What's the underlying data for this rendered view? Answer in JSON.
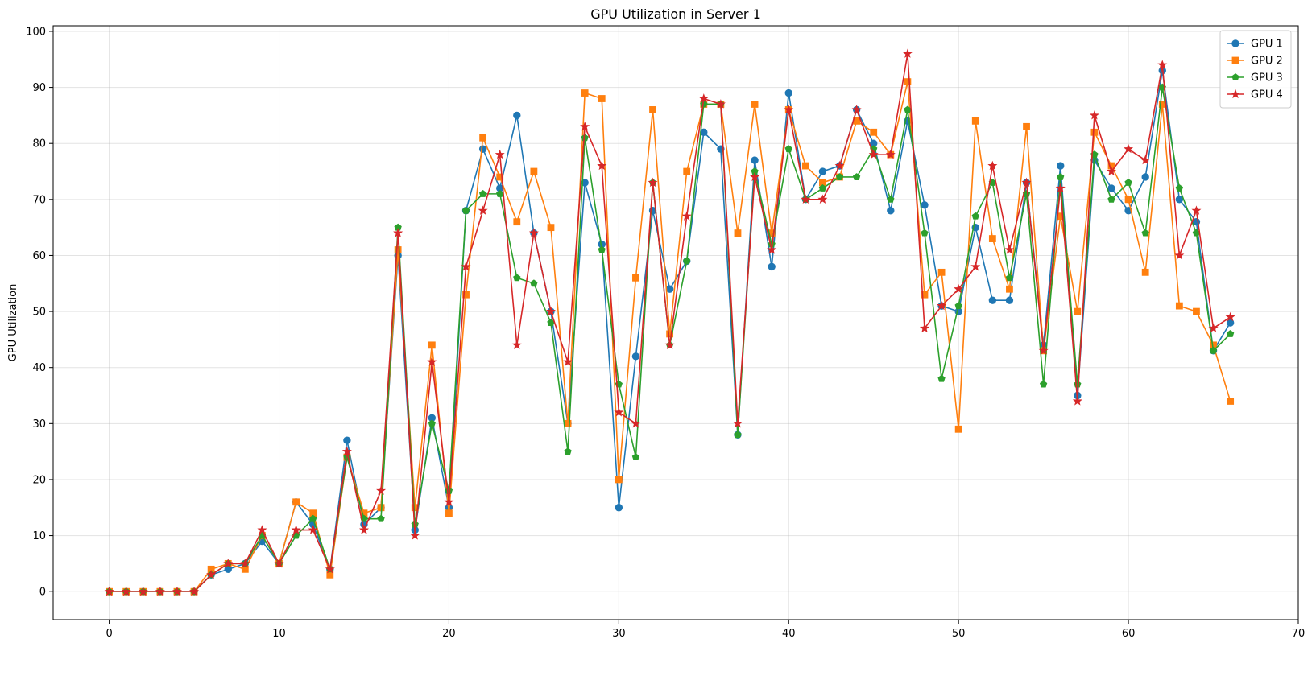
{
  "chart_data": {
    "type": "line",
    "title": "GPU Utilization in Server 1",
    "xlabel": "",
    "ylabel": "GPU Utilization",
    "xlim": [
      -3.3,
      70
    ],
    "ylim": [
      -5,
      101
    ],
    "xticks": [
      0,
      10,
      20,
      30,
      40,
      50,
      60,
      70
    ],
    "yticks": [
      0,
      10,
      20,
      30,
      40,
      50,
      60,
      70,
      80,
      90,
      100
    ],
    "grid": true,
    "legend_position": "top-right",
    "x": [
      0,
      1,
      2,
      3,
      4,
      5,
      6,
      7,
      8,
      9,
      10,
      11,
      12,
      13,
      14,
      15,
      16,
      17,
      18,
      19,
      20,
      21,
      22,
      23,
      24,
      25,
      26,
      27,
      28,
      29,
      30,
      31,
      32,
      33,
      34,
      35,
      36,
      37,
      38,
      39,
      40,
      41,
      42,
      43,
      44,
      45,
      46,
      47,
      48,
      49,
      50,
      51,
      52,
      53,
      54,
      55,
      56,
      57,
      58,
      59,
      60,
      61,
      62,
      63,
      64,
      65,
      66
    ],
    "series": [
      {
        "name": "GPU 1",
        "color": "#1f77b4",
        "marker": "circle",
        "values": [
          0,
          0,
          0,
          0,
          0,
          0,
          3,
          4,
          5,
          9,
          5,
          16,
          12,
          4,
          27,
          12,
          15,
          60,
          11,
          31,
          15,
          68,
          79,
          72,
          85,
          64,
          50,
          30,
          73,
          62,
          15,
          42,
          68,
          54,
          59,
          82,
          79,
          28,
          77,
          58,
          89,
          70,
          75,
          76,
          86,
          80,
          68,
          84,
          69,
          51,
          50,
          65,
          52,
          52,
          73,
          44,
          76,
          35,
          77,
          72,
          68,
          74,
          93,
          70,
          66,
          43,
          48
        ]
      },
      {
        "name": "GPU 2",
        "color": "#ff7f0e",
        "marker": "square",
        "values": [
          0,
          0,
          0,
          0,
          0,
          0,
          4,
          5,
          4,
          10,
          5,
          16,
          14,
          3,
          24,
          14,
          15,
          61,
          15,
          44,
          14,
          53,
          81,
          74,
          66,
          75,
          65,
          30,
          89,
          88,
          20,
          56,
          86,
          46,
          75,
          87,
          87,
          64,
          87,
          64,
          86,
          76,
          73,
          74,
          84,
          82,
          78,
          91,
          53,
          57,
          29,
          84,
          63,
          54,
          83,
          43,
          67,
          50,
          82,
          76,
          70,
          57,
          87,
          51,
          50,
          44,
          34
        ]
      },
      {
        "name": "GPU 3",
        "color": "#2ca02c",
        "marker": "pentagon",
        "values": [
          0,
          0,
          0,
          0,
          0,
          0,
          3,
          5,
          5,
          10,
          5,
          10,
          13,
          4,
          24,
          13,
          13,
          65,
          12,
          30,
          18,
          68,
          71,
          71,
          56,
          55,
          48,
          25,
          81,
          61,
          37,
          24,
          73,
          44,
          59,
          87,
          87,
          28,
          75,
          62,
          79,
          70,
          72,
          74,
          74,
          79,
          70,
          86,
          64,
          38,
          51,
          67,
          73,
          56,
          71,
          37,
          74,
          37,
          78,
          70,
          73,
          64,
          90,
          72,
          64,
          43,
          46
        ]
      },
      {
        "name": "GPU 4",
        "color": "#d62728",
        "marker": "star",
        "values": [
          0,
          0,
          0,
          0,
          0,
          0,
          3,
          5,
          5,
          11,
          5,
          11,
          11,
          4,
          25,
          11,
          18,
          64,
          10,
          41,
          16,
          58,
          68,
          78,
          44,
          64,
          50,
          41,
          83,
          76,
          32,
          30,
          73,
          44,
          67,
          88,
          87,
          30,
          74,
          61,
          86,
          70,
          70,
          76,
          86,
          78,
          78,
          96,
          47,
          51,
          54,
          58,
          76,
          61,
          73,
          43,
          72,
          34,
          85,
          75,
          79,
          77,
          94,
          60,
          68,
          47,
          49
        ]
      }
    ]
  }
}
